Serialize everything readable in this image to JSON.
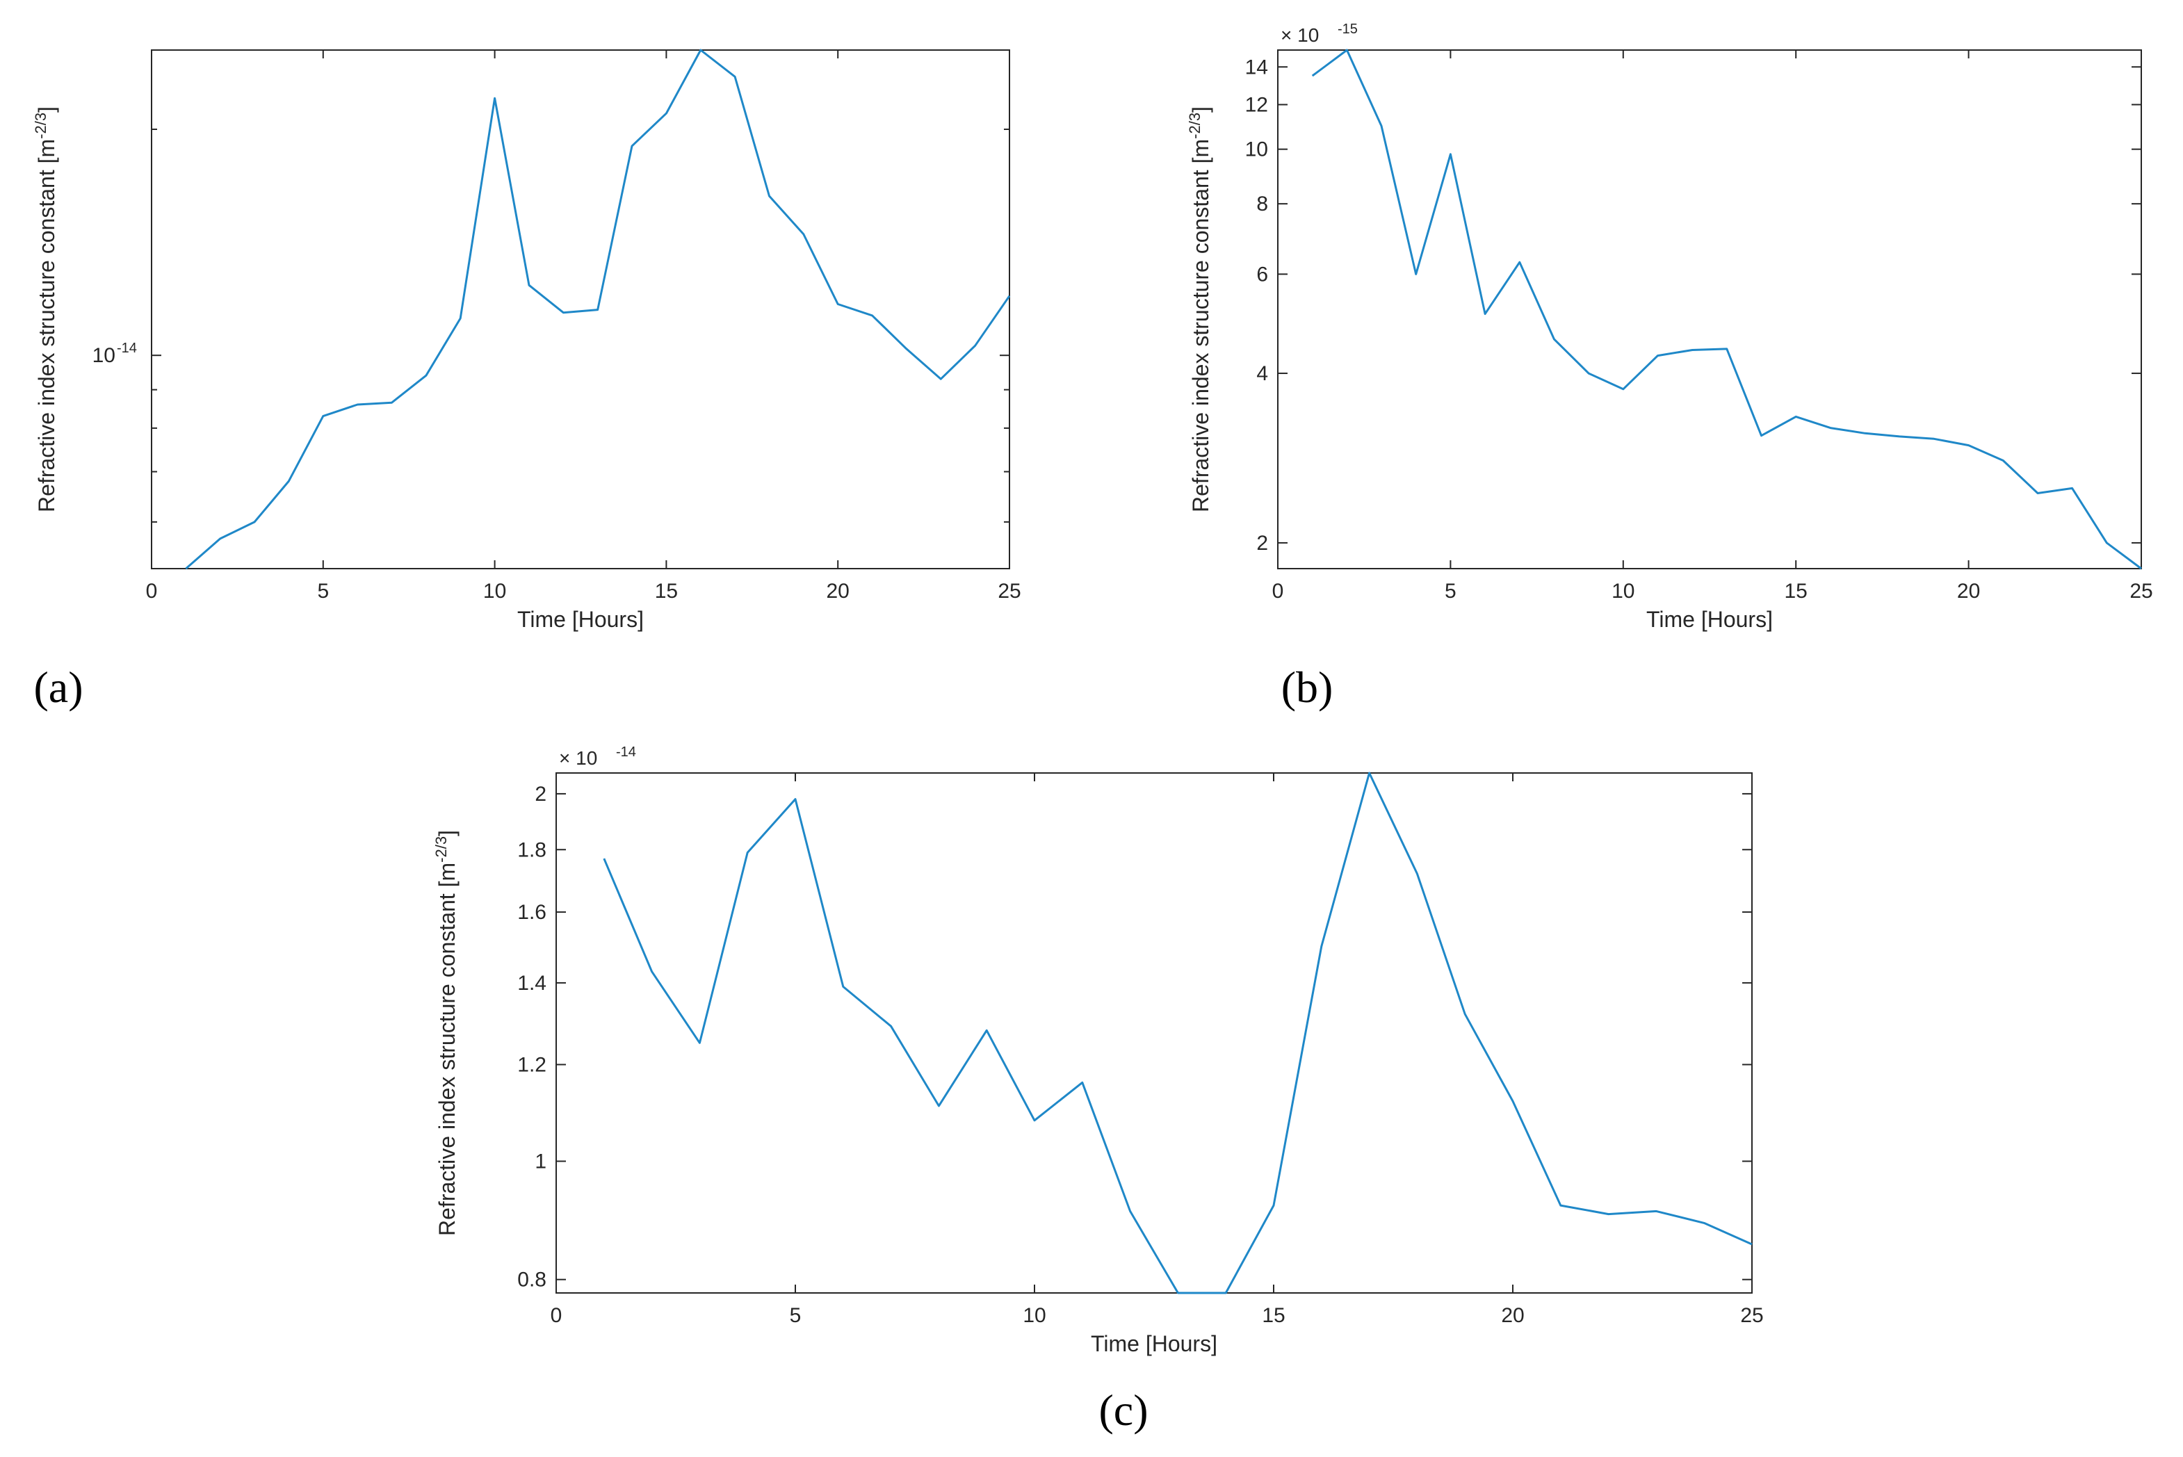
{
  "line_color": "#1f88c8",
  "chart_data": [
    {
      "type": "line",
      "panel_label": "(a)",
      "xlabel": "Time [Hours]",
      "ylabel": "Refractive index structure constant [m",
      "ylabel_sup": "-2/3",
      "ylabel_close": "]",
      "yscale": "log",
      "xlim": [
        0,
        25
      ],
      "ylim": [
        5.2e-15,
        2.55e-14
      ],
      "xticks": [
        0,
        5,
        10,
        15,
        20,
        25
      ],
      "xtick_labels": [
        "0",
        "5",
        "10",
        "15",
        "20",
        "25"
      ],
      "yticks": [
        1e-14
      ],
      "ytick_labels_base": [
        "10"
      ],
      "ytick_labels_exp": [
        "-14"
      ],
      "x": [
        1,
        2,
        3,
        4,
        5,
        6,
        7,
        8,
        9,
        10,
        11,
        12,
        13,
        14,
        15,
        16,
        17,
        18,
        19,
        20,
        21,
        22,
        23,
        24,
        25
      ],
      "values": [
        5.2e-15,
        5.7e-15,
        6e-15,
        6.8e-15,
        8.3e-15,
        8.6e-15,
        8.65e-15,
        9.4e-15,
        1.12e-14,
        2.2e-14,
        1.24e-14,
        1.14e-14,
        1.15e-14,
        1.9e-14,
        2.1e-14,
        2.55e-14,
        2.35e-14,
        1.63e-14,
        1.45e-14,
        1.17e-14,
        1.13e-14,
        1.02e-14,
        9.3e-15,
        1.03e-14,
        1.2e-14
      ]
    },
    {
      "type": "line",
      "panel_label": "(b)",
      "xlabel": "Time [Hours]",
      "ylabel": "Refractive index structure constant [m",
      "ylabel_sup": "-2/3",
      "ylabel_close": "]",
      "yscale": "log",
      "multiplier_base": "× 10",
      "multiplier_exp": "-15",
      "xlim": [
        0,
        25
      ],
      "ylim": [
        1.8,
        15
      ],
      "xticks": [
        0,
        5,
        10,
        15,
        20,
        25
      ],
      "xtick_labels": [
        "0",
        "5",
        "10",
        "15",
        "20",
        "25"
      ],
      "yticks": [
        2,
        4,
        6,
        8,
        10,
        12,
        14
      ],
      "ytick_labels": [
        "2",
        "4",
        "6",
        "8",
        "10",
        "12",
        "14"
      ],
      "x": [
        1,
        2,
        3,
        4,
        5,
        6,
        7,
        8,
        9,
        10,
        11,
        12,
        13,
        14,
        15,
        16,
        17,
        18,
        19,
        20,
        21,
        22,
        23,
        24,
        25
      ],
      "values": [
        13.5,
        15,
        11,
        6,
        9.8,
        5.1,
        6.3,
        4.6,
        4.0,
        3.75,
        4.3,
        4.4,
        4.42,
        3.1,
        3.35,
        3.2,
        3.13,
        3.09,
        3.06,
        2.98,
        2.8,
        2.45,
        2.5,
        2.0,
        1.8
      ]
    },
    {
      "type": "line",
      "panel_label": "(c)",
      "xlabel": "Time [Hours]",
      "ylabel": "Refractive index structure constant [m",
      "ylabel_sup": "-2/3",
      "ylabel_close": "]",
      "yscale": "log",
      "multiplier_base": "× 10",
      "multiplier_exp": "-14",
      "xlim": [
        0,
        25
      ],
      "ylim": [
        0.78,
        2.08
      ],
      "xticks": [
        0,
        5,
        10,
        15,
        20,
        25
      ],
      "xtick_labels": [
        "0",
        "5",
        "10",
        "15",
        "20",
        "25"
      ],
      "yticks": [
        0.8,
        1,
        1.2,
        1.4,
        1.6,
        1.8,
        2
      ],
      "ytick_labels": [
        "0.8",
        "1",
        "1.2",
        "1.4",
        "1.6",
        "1.8",
        "2"
      ],
      "x": [
        1,
        2,
        3,
        4,
        5,
        6,
        7,
        8,
        9,
        10,
        11,
        12,
        13,
        14,
        15,
        16,
        17,
        18,
        19,
        20,
        21,
        22,
        23,
        24,
        25
      ],
      "values": [
        1.77,
        1.43,
        1.25,
        1.79,
        1.98,
        1.39,
        1.29,
        1.11,
        1.28,
        1.08,
        1.16,
        0.91,
        0.78,
        0.78,
        0.92,
        1.5,
        2.08,
        1.72,
        1.32,
        1.12,
        0.92,
        0.905,
        0.91,
        0.89,
        0.855
      ]
    }
  ]
}
